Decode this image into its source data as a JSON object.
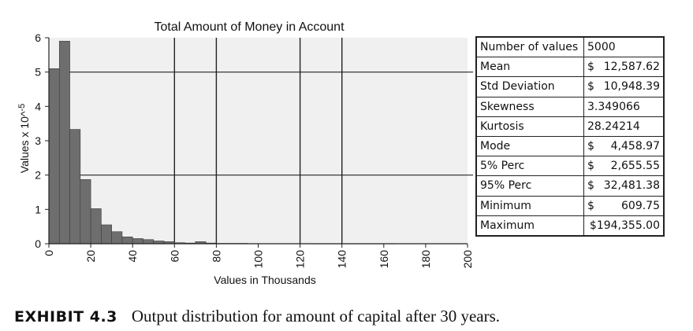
{
  "chart_data": {
    "type": "bar",
    "title": "Total Amount of Money in Account",
    "xlabel": "Values in Thousands",
    "ylabel": "Values x 10^-5",
    "xlim": [
      0,
      200
    ],
    "ylim": [
      0,
      6
    ],
    "xticks": [
      "0",
      "20",
      "40",
      "60",
      "80",
      "100",
      "120",
      "140",
      "160",
      "180",
      "200"
    ],
    "yticks": [
      "0",
      "1",
      "2",
      "3",
      "4",
      "5",
      "6"
    ],
    "bin_width": 5,
    "bins": [
      {
        "x0": 0,
        "value": 5.1
      },
      {
        "x0": 5,
        "value": 5.9
      },
      {
        "x0": 10,
        "value": 3.33
      },
      {
        "x0": 15,
        "value": 1.87
      },
      {
        "x0": 20,
        "value": 1.02
      },
      {
        "x0": 25,
        "value": 0.55
      },
      {
        "x0": 30,
        "value": 0.35
      },
      {
        "x0": 35,
        "value": 0.2
      },
      {
        "x0": 40,
        "value": 0.15
      },
      {
        "x0": 45,
        "value": 0.12
      },
      {
        "x0": 50,
        "value": 0.08
      },
      {
        "x0": 55,
        "value": 0.06
      },
      {
        "x0": 60,
        "value": 0.03
      },
      {
        "x0": 65,
        "value": 0.02
      },
      {
        "x0": 70,
        "value": 0.06
      },
      {
        "x0": 75,
        "value": 0.02
      },
      {
        "x0": 80,
        "value": 0.01
      },
      {
        "x0": 85,
        "value": 0.01
      },
      {
        "x0": 90,
        "value": 0.01
      },
      {
        "x0": 95,
        "value": 0.005
      },
      {
        "x0": 100,
        "value": 0.005
      },
      {
        "x0": 105,
        "value": 0.005
      },
      {
        "x0": 110,
        "value": 0.005
      },
      {
        "x0": 115,
        "value": 0.005
      },
      {
        "x0": 120,
        "value": 0.005
      },
      {
        "x0": 125,
        "value": 0.003
      },
      {
        "x0": 130,
        "value": 0.003
      },
      {
        "x0": 135,
        "value": 0.003
      },
      {
        "x0": 140,
        "value": 0.003
      },
      {
        "x0": 145,
        "value": 0.003
      },
      {
        "x0": 150,
        "value": 0.003
      },
      {
        "x0": 155,
        "value": 0.003
      },
      {
        "x0": 160,
        "value": 0.003
      }
    ],
    "grid": {
      "vertical": [
        60,
        80,
        120,
        140
      ],
      "horizontal": [
        2,
        5
      ]
    },
    "legend": "none",
    "colors": {
      "bar": "#6e6e6e",
      "plot_background": "#f0f0f0"
    }
  },
  "stats": [
    {
      "label": "Number of values",
      "value": "5000",
      "money": false
    },
    {
      "label": "Mean",
      "cur": "$",
      "amt": "12,587.62",
      "money": true
    },
    {
      "label": "Std Deviation",
      "cur": "$",
      "amt": "10,948.39",
      "money": true
    },
    {
      "label": "Skewness",
      "value": "3.349066",
      "money": false
    },
    {
      "label": "Kurtosis",
      "value": "28.24214",
      "money": false
    },
    {
      "label": "Mode",
      "cur": "$",
      "amt": "4,458.97",
      "money": true
    },
    {
      "label": "5% Perc",
      "cur": "$",
      "amt": "2,655.55",
      "money": true
    },
    {
      "label": "95% Perc",
      "cur": "$",
      "amt": "32,481.38",
      "money": true
    },
    {
      "label": "Minimum",
      "cur": "$",
      "amt": "609.75",
      "money": true
    },
    {
      "label": "Maximum",
      "cur": "$",
      "amt": "194,355.00",
      "money": true,
      "joined": "$194,355.00"
    }
  ],
  "caption": {
    "label": "EXHIBIT 4.3",
    "text": "Output distribution for amount of capital after 30 years."
  }
}
